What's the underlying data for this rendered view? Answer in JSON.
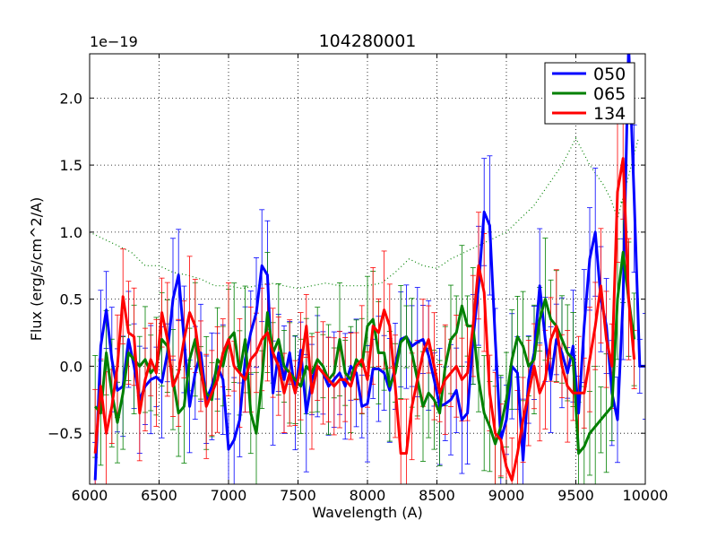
{
  "chart_data": {
    "type": "line",
    "title": "104280001",
    "xlabel": "Wavelength (A)",
    "ylabel": "Flux (erg/s/cm^2/A)",
    "offset_text": "1e−19",
    "xlim": [
      6000,
      10000
    ],
    "ylim": [
      -0.88,
      2.33
    ],
    "xticks": [
      6000,
      6500,
      7000,
      7500,
      8000,
      8500,
      9000,
      9500,
      10000
    ],
    "xtick_labels": [
      "6000",
      "6500",
      "7000",
      "7500",
      "8000",
      "8500",
      "9000",
      "9500",
      "10000"
    ],
    "yticks": [
      -0.5,
      0.0,
      0.5,
      1.0,
      1.5,
      2.0
    ],
    "ytick_labels": [
      "−0.5",
      "0.0",
      "0.5",
      "1.0",
      "1.5",
      "2.0"
    ],
    "grid": true,
    "legend_position": "top-right",
    "series": [
      {
        "name": "050",
        "color": "#0000ff",
        "x": [
          6040,
          6080,
          6120,
          6160,
          6200,
          6240,
          6280,
          6320,
          6360,
          6400,
          6440,
          6480,
          6520,
          6560,
          6600,
          6640,
          6680,
          6720,
          6760,
          6800,
          6840,
          6880,
          6920,
          6960,
          7000,
          7040,
          7080,
          7120,
          7160,
          7200,
          7240,
          7280,
          7320,
          7360,
          7400,
          7440,
          7480,
          7520,
          7560,
          7600,
          7640,
          7680,
          7720,
          7760,
          7800,
          7840,
          7880,
          7920,
          7960,
          8000,
          8040,
          8080,
          8120,
          8160,
          8200,
          8240,
          8280,
          8320,
          8360,
          8400,
          8440,
          8480,
          8520,
          8560,
          8600,
          8640,
          8680,
          8720,
          8760,
          8800,
          8840,
          8880,
          8920,
          8960,
          9000,
          9040,
          9080,
          9120,
          9160,
          9200,
          9240,
          9280,
          9320,
          9360,
          9400,
          9440,
          9480,
          9520,
          9560,
          9600,
          9640,
          9680,
          9720,
          9760,
          9800,
          9840,
          9880,
          9920,
          9960,
          10000
        ],
        "y": [
          -0.85,
          0.15,
          0.42,
          0.05,
          -0.18,
          -0.15,
          0.2,
          0.0,
          -0.25,
          -0.15,
          -0.1,
          -0.08,
          -0.12,
          0.1,
          0.5,
          0.68,
          0.2,
          -0.3,
          -0.05,
          0.1,
          -0.25,
          -0.15,
          0.0,
          -0.1,
          -0.62,
          -0.55,
          -0.4,
          0.05,
          0.25,
          0.4,
          0.75,
          0.68,
          -0.2,
          0.1,
          -0.1,
          0.1,
          -0.2,
          0.12,
          -0.35,
          -0.1,
          0.0,
          -0.05,
          -0.15,
          -0.1,
          -0.05,
          -0.15,
          0.0,
          -0.05,
          -0.3,
          -0.28,
          -0.02,
          -0.02,
          -0.05,
          -0.18,
          0.0,
          0.2,
          0.22,
          0.15,
          0.18,
          0.2,
          0.08,
          -0.1,
          -0.3,
          -0.28,
          -0.25,
          -0.18,
          -0.4,
          -0.35,
          0.2,
          0.6,
          1.15,
          1.05,
          0.2,
          -0.55,
          -0.4,
          0.0,
          -0.05,
          -0.7,
          -0.1,
          0.1,
          0.6,
          0.2,
          -0.1,
          0.2,
          0.1,
          -0.05,
          0.15,
          -0.35,
          0.3,
          0.8,
          1.0,
          0.5,
          0.3,
          -0.2,
          -0.4,
          0.5,
          2.4,
          1.25,
          0.0,
          0.0
        ]
      },
      {
        "name": "065",
        "color": "#008000",
        "x": [
          6040,
          6080,
          6120,
          6160,
          6200,
          6240,
          6280,
          6320,
          6360,
          6400,
          6440,
          6480,
          6520,
          6560,
          6600,
          6640,
          6680,
          6720,
          6760,
          6800,
          6840,
          6880,
          6920,
          6960,
          7000,
          7040,
          7080,
          7120,
          7160,
          7200,
          7240,
          7280,
          7320,
          7360,
          7400,
          7440,
          7480,
          7520,
          7560,
          7600,
          7640,
          7680,
          7720,
          7760,
          7800,
          7840,
          7880,
          7920,
          7960,
          8000,
          8040,
          8080,
          8120,
          8160,
          8200,
          8240,
          8280,
          8320,
          8360,
          8400,
          8440,
          8480,
          8520,
          8560,
          8600,
          8640,
          8680,
          8720,
          8760,
          8800,
          8840,
          8880,
          8920,
          8960,
          9000,
          9040,
          9080,
          9120,
          9160,
          9200,
          9240,
          9280,
          9320,
          9360,
          9400,
          9440,
          9480,
          9520,
          9560,
          9600,
          9640,
          9680,
          9720,
          9760,
          9800,
          9840,
          9880,
          9920
        ],
        "y": [
          -0.3,
          -0.35,
          0.1,
          -0.2,
          -0.42,
          -0.2,
          0.1,
          0.05,
          0.0,
          0.05,
          -0.05,
          0.0,
          0.2,
          0.15,
          -0.1,
          -0.35,
          -0.3,
          0.05,
          0.2,
          -0.05,
          -0.2,
          -0.25,
          0.05,
          0.0,
          0.2,
          0.25,
          -0.05,
          0.2,
          -0.35,
          -0.5,
          -0.1,
          0.4,
          0.1,
          0.2,
          0.0,
          -0.05,
          -0.1,
          -0.15,
          0.0,
          -0.05,
          0.05,
          0.0,
          -0.1,
          -0.05,
          0.2,
          -0.05,
          -0.1,
          0.05,
          0.0,
          0.3,
          0.35,
          0.1,
          0.1,
          -0.15,
          -0.05,
          0.18,
          0.22,
          0.1,
          -0.1,
          -0.3,
          -0.2,
          -0.25,
          -0.35,
          0.0,
          0.2,
          0.25,
          0.45,
          0.3,
          0.3,
          -0.1,
          -0.35,
          -0.45,
          -0.58,
          -0.45,
          -0.25,
          0.05,
          0.22,
          0.15,
          0.0,
          0.05,
          0.35,
          0.5,
          0.35,
          0.3,
          0.2,
          0.1,
          0.05,
          -0.65,
          -0.6,
          -0.5,
          -0.45,
          -0.4,
          -0.35,
          -0.3,
          0.5,
          0.85,
          0.5,
          0.2
        ]
      },
      {
        "name": "134",
        "color": "#ff0000",
        "x": [
          6040,
          6080,
          6120,
          6160,
          6200,
          6240,
          6280,
          6320,
          6360,
          6400,
          6440,
          6480,
          6520,
          6560,
          6600,
          6640,
          6680,
          6720,
          6760,
          6800,
          6840,
          6880,
          6920,
          6960,
          7000,
          7040,
          7080,
          7120,
          7160,
          7200,
          7240,
          7280,
          7320,
          7360,
          7400,
          7440,
          7480,
          7520,
          7560,
          7600,
          7640,
          7680,
          7720,
          7760,
          7800,
          7840,
          7880,
          7920,
          7960,
          8000,
          8040,
          8080,
          8120,
          8160,
          8200,
          8240,
          8280,
          8320,
          8360,
          8400,
          8440,
          8480,
          8520,
          8560,
          8600,
          8640,
          8680,
          8720,
          8760,
          8800,
          8840,
          8880,
          8920,
          8960,
          9000,
          9040,
          9080,
          9120,
          9160,
          9200,
          9240,
          9280,
          9320,
          9360,
          9400,
          9440,
          9480,
          9520,
          9560,
          9600,
          9640,
          9680,
          9720,
          9760,
          9800,
          9840,
          9880,
          9920
        ],
        "y": [
          -0.65,
          -0.15,
          -0.5,
          -0.3,
          0.0,
          0.52,
          0.25,
          0.22,
          -0.35,
          -0.1,
          0.05,
          -0.05,
          0.4,
          0.2,
          -0.15,
          -0.05,
          0.2,
          0.4,
          0.3,
          0.0,
          -0.3,
          -0.2,
          -0.1,
          0.1,
          0.2,
          0.0,
          -0.05,
          -0.1,
          0.05,
          0.1,
          0.2,
          0.25,
          0.1,
          0.0,
          -0.2,
          -0.05,
          -0.2,
          0.0,
          0.3,
          -0.2,
          0.0,
          -0.05,
          -0.1,
          -0.15,
          -0.1,
          -0.1,
          -0.15,
          0.0,
          0.05,
          -0.1,
          0.3,
          0.25,
          0.42,
          0.3,
          -0.15,
          -0.65,
          -0.65,
          -0.3,
          -0.1,
          0.1,
          0.2,
          0.0,
          -0.2,
          -0.1,
          -0.05,
          0.0,
          -0.1,
          -0.05,
          0.3,
          0.75,
          0.55,
          -0.2,
          -0.5,
          -0.55,
          -0.75,
          -0.85,
          -0.65,
          -0.4,
          -0.2,
          0.0,
          -0.2,
          -0.1,
          0.2,
          0.3,
          0.0,
          -0.15,
          -0.2,
          -0.2,
          -0.2,
          0.05,
          0.3,
          0.6,
          0.2,
          0.0,
          1.3,
          1.55,
          0.5,
          0.05
        ]
      }
    ],
    "reference_curve": {
      "name": "dotted",
      "color": "#008000",
      "x": [
        6000,
        6100,
        6200,
        6300,
        6400,
        6500,
        6600,
        6700,
        6800,
        6900,
        7000,
        7100,
        7200,
        7300,
        7400,
        7500,
        7600,
        7700,
        7800,
        7900,
        8000,
        8100,
        8200,
        8300,
        8400,
        8500,
        8600,
        8700,
        8800,
        8900,
        9000,
        9100,
        9200,
        9300,
        9400,
        9500,
        9600,
        9700,
        9750,
        9800,
        9850,
        9900,
        9950
      ],
      "y": [
        1.0,
        0.95,
        0.9,
        0.85,
        0.75,
        0.75,
        0.7,
        0.68,
        0.65,
        0.6,
        0.6,
        0.58,
        0.6,
        0.62,
        0.6,
        0.58,
        0.6,
        0.62,
        0.6,
        0.6,
        0.6,
        0.62,
        0.7,
        0.8,
        0.75,
        0.73,
        0.8,
        0.85,
        0.9,
        0.95,
        1.0,
        1.1,
        1.2,
        1.35,
        1.5,
        1.7,
        1.5,
        1.35,
        1.25,
        1.1,
        1.3,
        1.5,
        1.7
      ]
    }
  }
}
